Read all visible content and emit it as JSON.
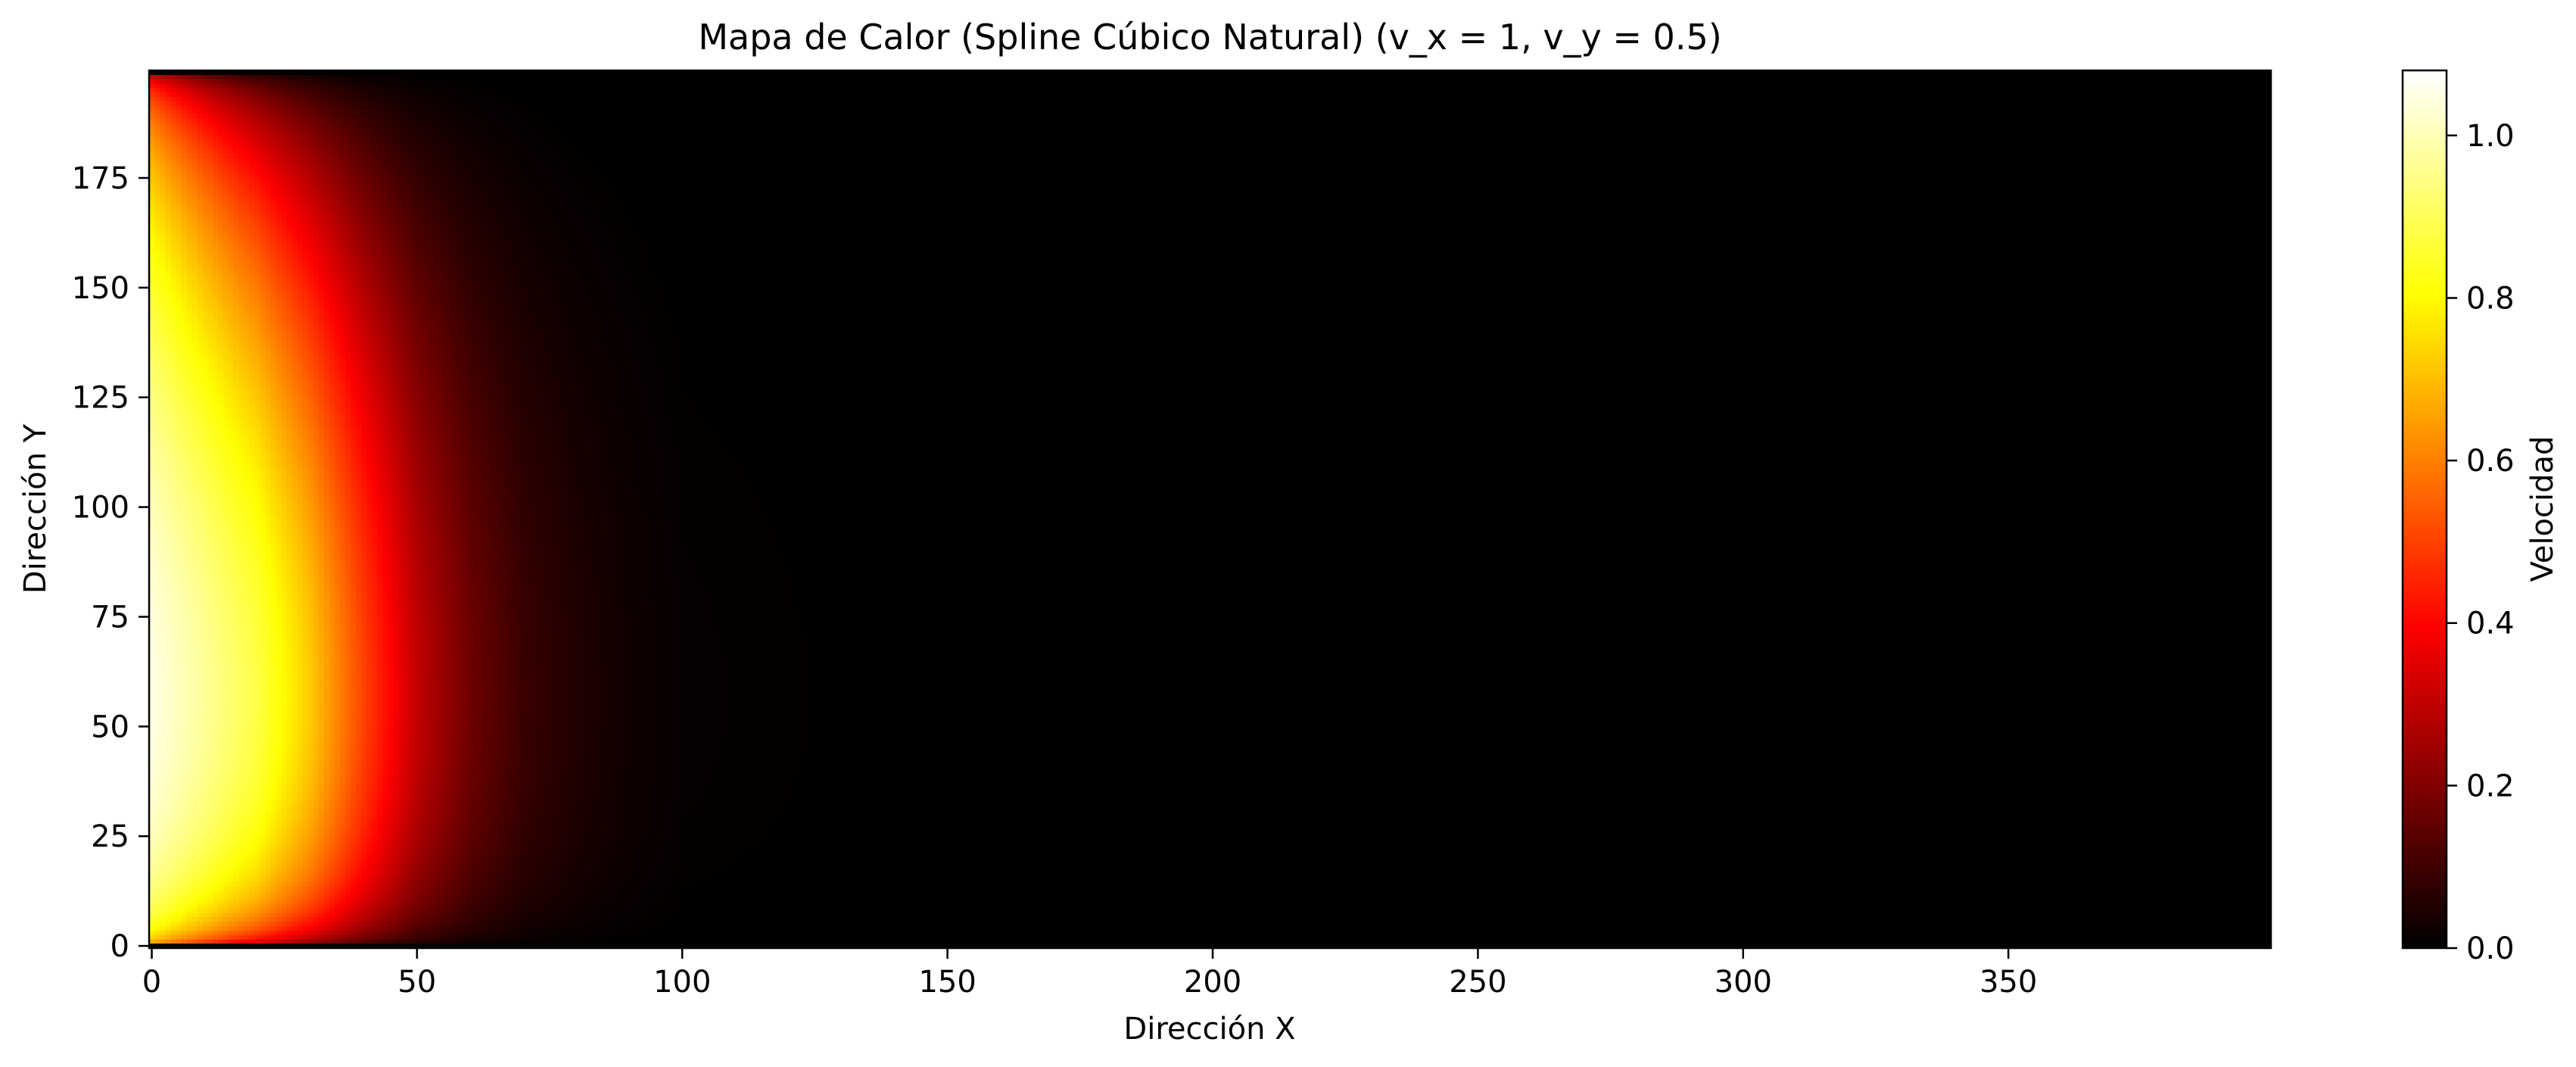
{
  "chart_data": {
    "type": "heatmap",
    "title": "Mapa de Calor (Spline Cúbico Natural) (v_x = 1, v_y = 0.5)",
    "xlabel": "Dirección X",
    "ylabel": "Dirección Y",
    "colorbar_label": "Velocidad",
    "colormap": "hot",
    "grid": false,
    "x_range": [
      0,
      399
    ],
    "y_range": [
      0,
      199
    ],
    "x_ticks": [
      0,
      50,
      100,
      150,
      200,
      250,
      300,
      350
    ],
    "y_ticks": [
      0,
      25,
      50,
      75,
      100,
      125,
      150,
      175
    ],
    "colorbar_range": [
      0.0,
      1.08
    ],
    "colorbar_ticks": [
      0.0,
      0.2,
      0.4,
      0.6,
      0.8,
      1.0
    ],
    "colorbar_tick_labels": [
      "0.0",
      "0.2",
      "0.4",
      "0.6",
      "0.8",
      "1.0"
    ],
    "field": {
      "description_values": "velocity decays along x from ~1.05 at x=0 toward 0 by x≈100; parabolic profile along y peaking near y≈130, zero at y=0 and y=199",
      "x_samples": [
        0,
        10,
        20,
        30,
        40,
        50,
        60,
        70,
        80,
        90,
        100,
        150,
        200,
        399
      ],
      "center_values": [
        1.05,
        0.97,
        0.88,
        0.72,
        0.5,
        0.3,
        0.17,
        0.09,
        0.05,
        0.025,
        0.01,
        0.0,
        0.0,
        0.0
      ]
    }
  }
}
